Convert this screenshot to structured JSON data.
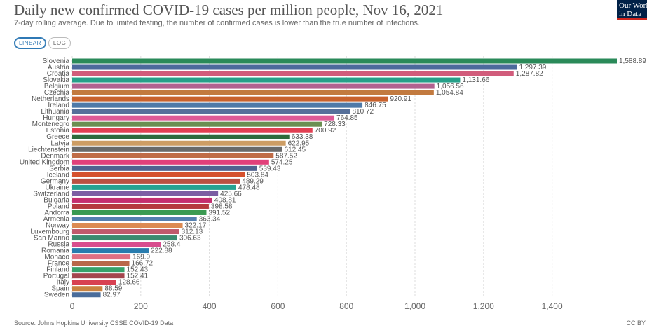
{
  "header": {
    "title": "Daily new confirmed COVID-19 cases per million people, Nov 16, 2021",
    "subtitle": "7-day rolling average. Due to limited testing, the number of confirmed cases is lower than the true number of infections."
  },
  "controls": {
    "linear_label": "LINEAR",
    "log_label": "LOG",
    "active": "linear"
  },
  "logo": {
    "line1": "Our World",
    "line2": "in Data",
    "bg": "#002147",
    "stripe": "#ce261e"
  },
  "footer": {
    "source": "Source: Johns Hopkins University CSSE COVID-19 Data",
    "license": "CC BY"
  },
  "chart_data": {
    "type": "bar",
    "orientation": "horizontal",
    "xlim": [
      0,
      1588.89
    ],
    "xticks": [
      0,
      200,
      400,
      600,
      800,
      1000,
      1200,
      1400
    ],
    "xtick_labels": [
      "0",
      "200",
      "400",
      "600",
      "800",
      "1,000",
      "1,200",
      "1,400"
    ],
    "grid": "vertical dashed",
    "categories": [
      "Slovenia",
      "Austria",
      "Croatia",
      "Slovakia",
      "Belgium",
      "Czechia",
      "Netherlands",
      "Ireland",
      "Lithuania",
      "Hungary",
      "Montenegro",
      "Estonia",
      "Greece",
      "Latvia",
      "Liechtenstein",
      "Denmark",
      "United Kingdom",
      "Serbia",
      "Iceland",
      "Germany",
      "Ukraine",
      "Switzerland",
      "Bulgaria",
      "Poland",
      "Andorra",
      "Armenia",
      "Norway",
      "Luxembourg",
      "San Marino",
      "Russia",
      "Romania",
      "Monaco",
      "France",
      "Finland",
      "Portugal",
      "Italy",
      "Spain",
      "Sweden"
    ],
    "values": [
      1588.89,
      1297.39,
      1287.82,
      1131.66,
      1056.56,
      1054.84,
      920.91,
      846.75,
      810.72,
      764.85,
      728.33,
      700.92,
      633.38,
      622.95,
      612.45,
      587.52,
      574.25,
      539.43,
      503.84,
      489.29,
      478.48,
      425.66,
      408.81,
      398.58,
      391.52,
      363.34,
      322.17,
      312.13,
      306.63,
      258.4,
      222.88,
      169.9,
      166.72,
      152.43,
      152.41,
      128.66,
      88.59,
      82.97
    ],
    "value_labels": [
      "1,588.89",
      "1,297.39",
      "1,287.82",
      "1,131.66",
      "1,056.56",
      "1,054.84",
      "920.91",
      "846.75",
      "810.72",
      "764.85",
      "728.33",
      "700.92",
      "633.38",
      "622.95",
      "612.45",
      "587.52",
      "574.25",
      "539.43",
      "503.84",
      "489.29",
      "478.48",
      "425.66",
      "408.81",
      "398.58",
      "391.52",
      "363.34",
      "322.17",
      "312.13",
      "306.63",
      "258.4",
      "222.88",
      "169.9",
      "166.72",
      "152.43",
      "152.41",
      "128.66",
      "88.59",
      "82.97"
    ],
    "colors": [
      "#2a8a59",
      "#4c6a9c",
      "#d15c7b",
      "#26a089",
      "#b16290",
      "#c27a3f",
      "#c8622d",
      "#4f7aa8",
      "#56709a",
      "#de5a96",
      "#6b8f52",
      "#e23f52",
      "#2d6b3c",
      "#cd9d64",
      "#6a6a6a",
      "#c06c47",
      "#e1407a",
      "#50628f",
      "#d5512e",
      "#b95042",
      "#25a292",
      "#7c5ea3",
      "#c42f6e",
      "#b53a3e",
      "#3a9a52",
      "#5580b0",
      "#dc8a52",
      "#c05a6c",
      "#3a8b6f",
      "#d84d8e",
      "#297cae",
      "#e07083",
      "#b8684a",
      "#36a26b",
      "#a4464e",
      "#d84152",
      "#c98342",
      "#4a6c9a"
    ]
  }
}
